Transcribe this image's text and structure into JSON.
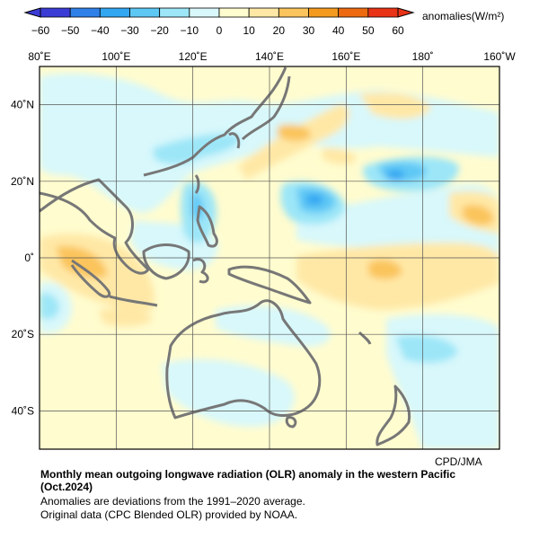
{
  "legend": {
    "unit_label": "anomalies(W/m²)",
    "ticks": [
      "−60",
      "−50",
      "−40",
      "−30",
      "−20",
      "−10",
      "0",
      "10",
      "20",
      "30",
      "40",
      "50",
      "60"
    ],
    "colors": [
      "#3b3bd6",
      "#2f80e8",
      "#33a6f2",
      "#5ec8f5",
      "#9ce6f8",
      "#d8f8fb",
      "#fffccf",
      "#ffe8a6",
      "#fbc45c",
      "#f49b1f",
      "#ee6a10",
      "#e93316"
    ]
  },
  "map": {
    "lon_labels": [
      "80˚E",
      "100˚E",
      "120˚E",
      "140˚E",
      "160˚E",
      "180˚",
      "160˚W"
    ],
    "lat_labels": [
      "40˚N",
      "20˚N",
      "0˚",
      "20˚S",
      "40˚S"
    ],
    "lon_range": [
      80,
      200
    ],
    "lat_range": [
      -50,
      50
    ],
    "land_color": "#777777",
    "grid_color": "#555555"
  },
  "footer": {
    "credit": "CPD/JMA",
    "title_line1": "Monthly mean outgoing longwave radiation (OLR) anomaly in the western Pacific",
    "title_line2": "(Oct.2024)",
    "note1": "Anomalies are deviations from the 1991–2020 average.",
    "note2": "Original data (CPC Blended OLR) provided by NOAA."
  }
}
